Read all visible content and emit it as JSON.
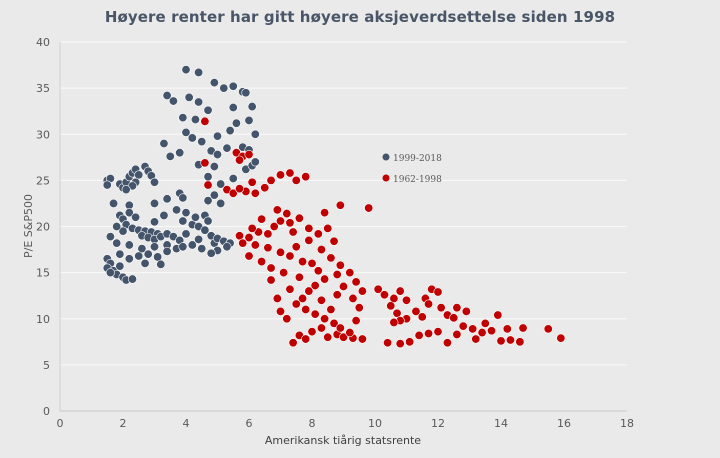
{
  "chart_data": {
    "type": "scatter",
    "title": "Høyere renter har gitt høyere aksjeverdsettelse siden 1998",
    "xlabel": "Amerikansk tiårig statsrente",
    "ylabel": "P/E S&P500",
    "xlim": [
      0,
      18
    ],
    "ylim": [
      0,
      40
    ],
    "x_ticks": [
      "0",
      "2",
      "4",
      "6",
      "8",
      "10",
      "12",
      "14",
      "16",
      "18"
    ],
    "y_ticks": [
      "0",
      "5",
      "10",
      "15",
      "20",
      "25",
      "30",
      "35",
      "40"
    ],
    "grid": "horizontal",
    "legend_position": "center-right",
    "series": [
      {
        "name": "1999-2018",
        "color": "#44546a",
        "points": [
          [
            1.5,
            25
          ],
          [
            1.6,
            25.2
          ],
          [
            1.5,
            24.5
          ],
          [
            1.9,
            24.6
          ],
          [
            2.0,
            24.2
          ],
          [
            2.1,
            24.8
          ],
          [
            2.2,
            25.4
          ],
          [
            2.3,
            25.8
          ],
          [
            2.4,
            26.2
          ],
          [
            2.5,
            25.6
          ],
          [
            2.4,
            24.8
          ],
          [
            2.3,
            24.4
          ],
          [
            2.1,
            24.0
          ],
          [
            2.7,
            26.5
          ],
          [
            2.8,
            26.0
          ],
          [
            2.9,
            25.5
          ],
          [
            3.0,
            24.8
          ],
          [
            1.7,
            22.5
          ],
          [
            2.2,
            22.3
          ],
          [
            1.9,
            21.2
          ],
          [
            2.0,
            20.8
          ],
          [
            2.2,
            21.5
          ],
          [
            2.4,
            21.0
          ],
          [
            2.1,
            20.2
          ],
          [
            2.3,
            19.8
          ],
          [
            2.5,
            19.6
          ],
          [
            2.7,
            19.5
          ],
          [
            2.9,
            19.4
          ],
          [
            3.1,
            19.2
          ],
          [
            2.6,
            19.0
          ],
          [
            2.8,
            18.8
          ],
          [
            3.0,
            18.6
          ],
          [
            3.2,
            18.9
          ],
          [
            3.4,
            19.2
          ],
          [
            3.6,
            18.9
          ],
          [
            3.8,
            18.5
          ],
          [
            3.4,
            18.0
          ],
          [
            3.0,
            17.8
          ],
          [
            2.6,
            17.6
          ],
          [
            2.2,
            18.0
          ],
          [
            1.8,
            18.2
          ],
          [
            1.6,
            18.9
          ],
          [
            2.0,
            19.5
          ],
          [
            1.8,
            20.0
          ],
          [
            1.5,
            16.5
          ],
          [
            1.6,
            16.0
          ],
          [
            1.5,
            15.5
          ],
          [
            1.7,
            15.2
          ],
          [
            1.8,
            14.8
          ],
          [
            2.0,
            14.5
          ],
          [
            2.1,
            14.2
          ],
          [
            2.3,
            14.3
          ],
          [
            1.6,
            15.0
          ],
          [
            1.9,
            15.7
          ],
          [
            2.2,
            16.5
          ],
          [
            2.5,
            16.8
          ],
          [
            2.8,
            17.0
          ],
          [
            3.1,
            16.7
          ],
          [
            3.4,
            17.3
          ],
          [
            3.7,
            17.6
          ],
          [
            3.9,
            17.8
          ],
          [
            3.2,
            15.9
          ],
          [
            2.7,
            16.0
          ],
          [
            1.9,
            17.0
          ],
          [
            3.0,
            22.5
          ],
          [
            3.4,
            23.0
          ],
          [
            3.0,
            20.5
          ],
          [
            3.3,
            21.2
          ],
          [
            3.7,
            21.8
          ],
          [
            4.0,
            21.5
          ],
          [
            3.9,
            20.6
          ],
          [
            4.2,
            20.2
          ],
          [
            4.4,
            20.0
          ],
          [
            4.6,
            19.6
          ],
          [
            4.8,
            19.0
          ],
          [
            4.4,
            18.6
          ],
          [
            4.9,
            18.2
          ],
          [
            4.5,
            17.6
          ],
          [
            4.2,
            18.0
          ],
          [
            4.0,
            19.2
          ],
          [
            4.3,
            21.0
          ],
          [
            4.6,
            21.2
          ],
          [
            4.7,
            20.6
          ],
          [
            5.0,
            18.7
          ],
          [
            5.2,
            18.4
          ],
          [
            5.4,
            18.2
          ],
          [
            5.0,
            17.4
          ],
          [
            5.3,
            17.8
          ],
          [
            4.8,
            17.1
          ],
          [
            3.8,
            23.6
          ],
          [
            3.9,
            23.1
          ],
          [
            4.7,
            22.8
          ],
          [
            4.9,
            23.4
          ],
          [
            5.1,
            22.5
          ],
          [
            4.0,
            37.0
          ],
          [
            4.4,
            36.7
          ],
          [
            4.9,
            35.6
          ],
          [
            5.2,
            35.0
          ],
          [
            5.5,
            35.2
          ],
          [
            5.8,
            34.6
          ],
          [
            5.9,
            34.5
          ],
          [
            3.4,
            34.2
          ],
          [
            3.6,
            33.6
          ],
          [
            4.1,
            34.0
          ],
          [
            4.4,
            33.5
          ],
          [
            4.7,
            32.6
          ],
          [
            5.5,
            32.9
          ],
          [
            6.1,
            33.0
          ],
          [
            6.0,
            31.5
          ],
          [
            3.9,
            31.8
          ],
          [
            4.3,
            31.6
          ],
          [
            5.6,
            31.2
          ],
          [
            5.4,
            30.4
          ],
          [
            6.2,
            30.0
          ],
          [
            4.0,
            30.2
          ],
          [
            4.2,
            29.6
          ],
          [
            4.5,
            29.2
          ],
          [
            4.8,
            28.2
          ],
          [
            5.0,
            27.8
          ],
          [
            5.3,
            28.5
          ],
          [
            5.8,
            28.6
          ],
          [
            6.0,
            28.3
          ],
          [
            3.8,
            28.0
          ],
          [
            3.5,
            27.6
          ],
          [
            4.4,
            26.7
          ],
          [
            4.7,
            25.4
          ],
          [
            5.1,
            24.6
          ],
          [
            5.5,
            25.2
          ],
          [
            5.9,
            26.2
          ],
          [
            6.1,
            26.6
          ],
          [
            6.2,
            27.0
          ],
          [
            4.9,
            26.5
          ],
          [
            5.0,
            29.8
          ],
          [
            3.3,
            29.0
          ]
        ]
      },
      {
        "name": "1962-1998",
        "color": "#c00000",
        "points": [
          [
            4.6,
            31.4
          ],
          [
            4.6,
            26.9
          ],
          [
            5.6,
            28.0
          ],
          [
            5.8,
            27.6
          ],
          [
            5.7,
            27.2
          ],
          [
            6.0,
            27.8
          ],
          [
            4.7,
            24.5
          ],
          [
            5.3,
            24.0
          ],
          [
            5.5,
            23.6
          ],
          [
            5.9,
            23.8
          ],
          [
            6.2,
            23.6
          ],
          [
            6.5,
            24.2
          ],
          [
            6.7,
            25.0
          ],
          [
            7.0,
            25.6
          ],
          [
            7.3,
            25.8
          ],
          [
            7.5,
            25.0
          ],
          [
            7.8,
            25.4
          ],
          [
            6.1,
            24.8
          ],
          [
            5.7,
            24.1
          ],
          [
            5.7,
            19.0
          ],
          [
            6.0,
            18.8
          ],
          [
            6.3,
            19.4
          ],
          [
            6.6,
            19.2
          ],
          [
            6.8,
            20.0
          ],
          [
            7.0,
            20.6
          ],
          [
            7.3,
            20.4
          ],
          [
            7.6,
            20.9
          ],
          [
            7.2,
            21.4
          ],
          [
            6.9,
            21.8
          ],
          [
            6.4,
            20.8
          ],
          [
            6.1,
            19.8
          ],
          [
            5.8,
            18.2
          ],
          [
            6.2,
            18.0
          ],
          [
            6.6,
            17.7
          ],
          [
            7.0,
            17.2
          ],
          [
            7.3,
            16.8
          ],
          [
            7.7,
            16.2
          ],
          [
            8.0,
            16.0
          ],
          [
            7.5,
            17.8
          ],
          [
            7.9,
            18.5
          ],
          [
            8.2,
            19.2
          ],
          [
            8.5,
            19.8
          ],
          [
            8.7,
            18.4
          ],
          [
            8.3,
            17.5
          ],
          [
            8.6,
            16.6
          ],
          [
            8.9,
            15.8
          ],
          [
            9.2,
            15.0
          ],
          [
            8.8,
            14.8
          ],
          [
            8.4,
            14.3
          ],
          [
            8.1,
            13.6
          ],
          [
            7.9,
            13.0
          ],
          [
            7.7,
            12.2
          ],
          [
            7.5,
            11.6
          ],
          [
            7.8,
            11.0
          ],
          [
            8.1,
            10.5
          ],
          [
            8.4,
            10.0
          ],
          [
            8.7,
            9.5
          ],
          [
            8.3,
            9.0
          ],
          [
            8.0,
            8.6
          ],
          [
            7.6,
            8.2
          ],
          [
            7.4,
            7.4
          ],
          [
            7.8,
            7.8
          ],
          [
            8.5,
            8.0
          ],
          [
            8.8,
            8.3
          ],
          [
            9.0,
            8.0
          ],
          [
            9.3,
            7.9
          ],
          [
            9.6,
            7.8
          ],
          [
            9.2,
            8.5
          ],
          [
            8.9,
            9.0
          ],
          [
            8.6,
            11.0
          ],
          [
            8.3,
            12.0
          ],
          [
            8.8,
            12.6
          ],
          [
            9.0,
            13.5
          ],
          [
            9.4,
            14.0
          ],
          [
            9.6,
            13.0
          ],
          [
            9.3,
            12.2
          ],
          [
            7.2,
            10.0
          ],
          [
            7.0,
            10.8
          ],
          [
            6.9,
            12.2
          ],
          [
            7.3,
            13.2
          ],
          [
            7.1,
            15.0
          ],
          [
            6.7,
            15.5
          ],
          [
            6.4,
            16.2
          ],
          [
            6.0,
            16.8
          ],
          [
            6.7,
            14.2
          ],
          [
            7.6,
            14.5
          ],
          [
            8.2,
            15.2
          ],
          [
            8.4,
            21.5
          ],
          [
            8.9,
            22.3
          ],
          [
            9.8,
            22.0
          ],
          [
            7.9,
            19.8
          ],
          [
            7.4,
            19.4
          ],
          [
            9.5,
            11.2
          ],
          [
            9.4,
            9.8
          ],
          [
            10.1,
            13.2
          ],
          [
            10.3,
            12.6
          ],
          [
            10.6,
            12.2
          ],
          [
            10.8,
            13.0
          ],
          [
            11.0,
            12.0
          ],
          [
            10.5,
            11.4
          ],
          [
            10.7,
            10.6
          ],
          [
            11.0,
            10.0
          ],
          [
            11.3,
            10.8
          ],
          [
            11.6,
            12.2
          ],
          [
            11.8,
            13.2
          ],
          [
            12.0,
            12.9
          ],
          [
            11.7,
            11.6
          ],
          [
            12.1,
            11.2
          ],
          [
            12.3,
            10.4
          ],
          [
            11.5,
            10.2
          ],
          [
            10.8,
            9.8
          ],
          [
            10.4,
            7.4
          ],
          [
            10.8,
            7.3
          ],
          [
            11.1,
            7.5
          ],
          [
            11.4,
            8.2
          ],
          [
            11.7,
            8.4
          ],
          [
            12.0,
            8.6
          ],
          [
            10.6,
            9.6
          ],
          [
            12.6,
            11.2
          ],
          [
            12.9,
            10.8
          ],
          [
            12.5,
            10.1
          ],
          [
            12.8,
            9.2
          ],
          [
            13.1,
            8.9
          ],
          [
            12.6,
            8.3
          ],
          [
            13.4,
            8.5
          ],
          [
            13.7,
            8.7
          ],
          [
            13.2,
            7.8
          ],
          [
            14.0,
            7.6
          ],
          [
            14.3,
            7.7
          ],
          [
            14.6,
            7.5
          ],
          [
            14.2,
            8.9
          ],
          [
            14.7,
            9.0
          ],
          [
            13.9,
            10.4
          ],
          [
            15.5,
            8.9
          ],
          [
            15.9,
            7.9
          ],
          [
            13.5,
            9.5
          ],
          [
            12.3,
            7.4
          ]
        ]
      }
    ]
  }
}
